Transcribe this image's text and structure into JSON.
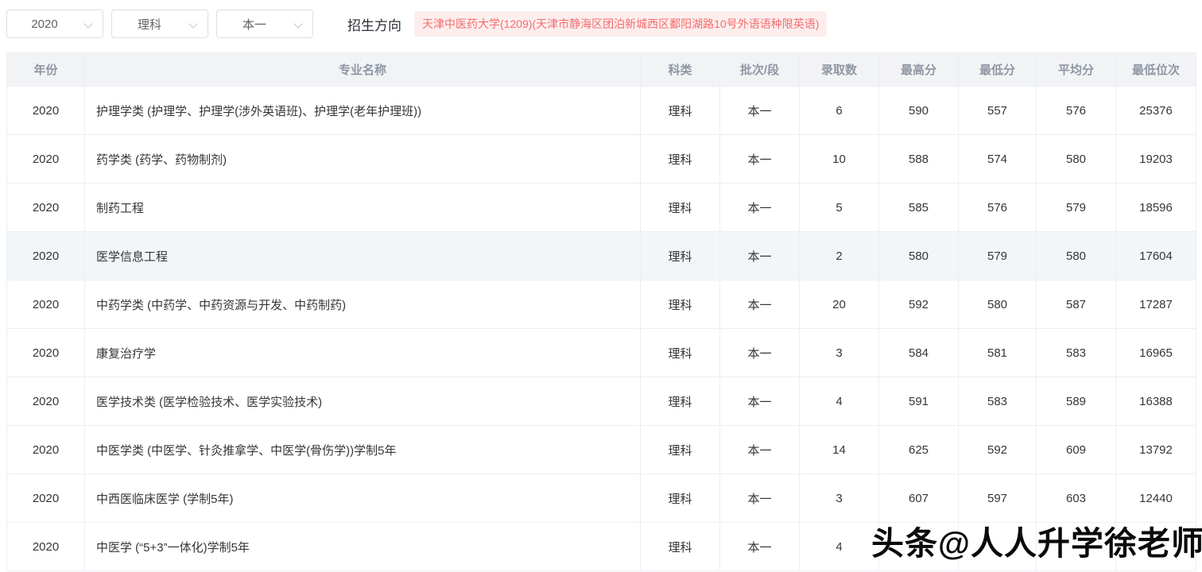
{
  "filters": {
    "year_select": {
      "value": "2020"
    },
    "subject_select": {
      "value": "理科"
    },
    "batch_select": {
      "value": "本一"
    },
    "direction_label": "招生方向",
    "direction_value": "天津中医药大学(1209)(天津市静海区团泊新城西区鄱阳湖路10号外语语种限英语)"
  },
  "table": {
    "columns": [
      "年份",
      "专业名称",
      "科类",
      "批次/段",
      "录取数",
      "最高分",
      "最低分",
      "平均分",
      "最低位次"
    ],
    "rows": [
      [
        "2020",
        "护理学类 (护理学、护理学(涉外英语班)、护理学(老年护理班))",
        "理科",
        "本一",
        "6",
        "590",
        "557",
        "576",
        "25376"
      ],
      [
        "2020",
        "药学类 (药学、药物制剂)",
        "理科",
        "本一",
        "10",
        "588",
        "574",
        "580",
        "19203"
      ],
      [
        "2020",
        "制药工程",
        "理科",
        "本一",
        "5",
        "585",
        "576",
        "579",
        "18596"
      ],
      [
        "2020",
        "医学信息工程",
        "理科",
        "本一",
        "2",
        "580",
        "579",
        "580",
        "17604"
      ],
      [
        "2020",
        "中药学类 (中药学、中药资源与开发、中药制药)",
        "理科",
        "本一",
        "20",
        "592",
        "580",
        "587",
        "17287"
      ],
      [
        "2020",
        "康复治疗学",
        "理科",
        "本一",
        "3",
        "584",
        "581",
        "583",
        "16965"
      ],
      [
        "2020",
        "医学技术类 (医学检验技术、医学实验技术)",
        "理科",
        "本一",
        "4",
        "591",
        "583",
        "589",
        "16388"
      ],
      [
        "2020",
        "中医学类 (中医学、针灸推拿学、中医学(骨伤学))学制5年",
        "理科",
        "本一",
        "14",
        "625",
        "592",
        "609",
        "13792"
      ],
      [
        "2020",
        "中西医临床医学 (学制5年)",
        "理科",
        "本一",
        "3",
        "607",
        "597",
        "603",
        "12440"
      ],
      [
        "2020",
        "中医学 (“5+3”一体化)学制5年",
        "理科",
        "本一",
        "4",
        "625",
        "",
        "",
        ""
      ]
    ],
    "highlighted_row_index": 3
  },
  "watermark": {
    "text": "头条@人人升学徐老师"
  },
  "colors": {
    "danger_text": "#f56c6c",
    "danger_bg": "#fdeeee",
    "header_bg": "#f2f3f5",
    "header_text": "#8f97a3",
    "highlight_row_bg": "#f3f6f9",
    "border": "#ebeef5"
  }
}
